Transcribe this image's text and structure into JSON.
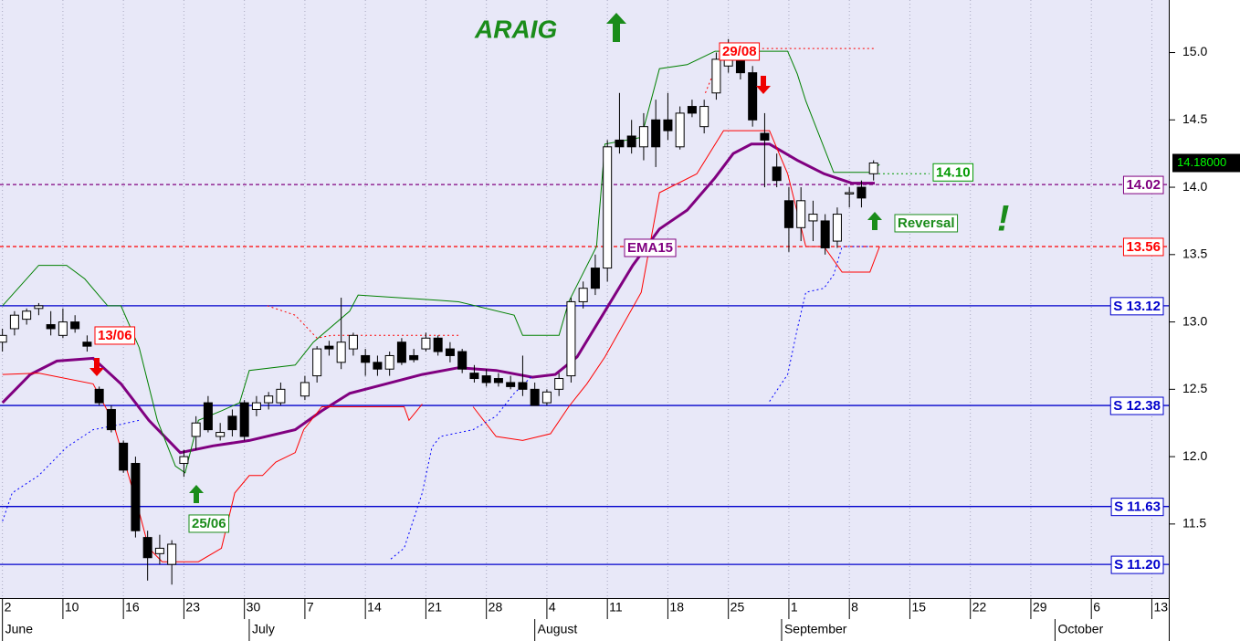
{
  "chart_data": {
    "type": "candlestick",
    "title": "ARAIG",
    "xlim": [
      -0.2,
      96.4
    ],
    "ylim": [
      10.95,
      15.39
    ],
    "xticks": [
      {
        "value": 0,
        "label": "2"
      },
      {
        "value": 5,
        "label": "10"
      },
      {
        "value": 10,
        "label": "16"
      },
      {
        "value": 15,
        "label": "23"
      },
      {
        "value": 20,
        "label": "30"
      },
      {
        "value": 25,
        "label": "7"
      },
      {
        "value": 30,
        "label": "14"
      },
      {
        "value": 35,
        "label": "21"
      },
      {
        "value": 40,
        "label": "28"
      },
      {
        "value": 45,
        "label": "4"
      },
      {
        "value": 50,
        "label": "11"
      },
      {
        "value": 55,
        "label": "18"
      },
      {
        "value": 60,
        "label": "25"
      },
      {
        "value": 65,
        "label": "1"
      },
      {
        "value": 70,
        "label": "8"
      },
      {
        "value": 75,
        "label": "15"
      },
      {
        "value": 80,
        "label": "22"
      },
      {
        "value": 85,
        "label": "29"
      },
      {
        "value": 90,
        "label": "6"
      },
      {
        "value": 95,
        "label": "13"
      }
    ],
    "month_ticks": [
      {
        "value": 0,
        "label": "June"
      },
      {
        "value": 20.4,
        "label": "July"
      },
      {
        "value": 44,
        "label": "August"
      },
      {
        "value": 64.4,
        "label": "September"
      },
      {
        "value": 87,
        "label": "October"
      }
    ],
    "yticks": [
      {
        "value": 15,
        "label": "15.0"
      },
      14.5,
      {
        "value": 14,
        "label": "14.0"
      },
      13.5,
      {
        "value": 13,
        "label": "13.0"
      },
      12.5,
      {
        "value": 12,
        "label": "12.0"
      },
      11.5
    ],
    "grid": true,
    "ohlc": {
      "x": [
        0,
        1,
        2,
        3,
        4,
        5,
        6,
        7,
        8,
        9,
        10,
        11,
        12,
        13,
        14,
        15,
        16,
        17,
        18,
        19,
        20,
        21,
        22,
        23,
        25,
        26,
        27,
        28,
        29,
        30,
        31,
        32,
        33,
        34,
        35,
        36,
        37,
        38,
        39,
        40,
        41,
        42,
        43,
        44,
        45,
        46,
        47,
        48,
        49,
        50,
        51,
        52,
        53,
        54,
        55,
        56,
        57,
        58,
        59,
        60,
        61,
        62,
        63,
        64,
        65,
        66,
        67,
        68,
        69,
        70,
        71,
        72
      ],
      "open": [
        12.85,
        12.95,
        13.02,
        13.1,
        12.98,
        12.9,
        13.0,
        12.85,
        12.5,
        12.35,
        12.1,
        11.95,
        11.4,
        11.28,
        11.2,
        11.95,
        12.15,
        12.4,
        12.15,
        12.3,
        12.4,
        12.35,
        12.4,
        12.4,
        12.45,
        12.6,
        12.82,
        12.7,
        12.8,
        12.75,
        12.7,
        12.65,
        12.85,
        12.75,
        12.8,
        12.88,
        12.8,
        12.78,
        12.62,
        12.6,
        12.58,
        12.55,
        12.55,
        12.5,
        12.4,
        12.5,
        12.6,
        13.15,
        13.4,
        13.4,
        14.35,
        14.38,
        14.3,
        14.5,
        14.5,
        14.3,
        14.6,
        14.45,
        14.7,
        14.9,
        14.95,
        14.85,
        14.4,
        14.15,
        13.9,
        13.7,
        13.75,
        13.75,
        13.6,
        13.95,
        14.0,
        14.1
      ],
      "high": [
        12.95,
        13.08,
        13.1,
        13.14,
        13.08,
        13.1,
        13.05,
        12.9,
        12.52,
        12.38,
        12.12,
        12.0,
        11.45,
        11.42,
        11.38,
        12.05,
        12.3,
        12.45,
        12.25,
        12.35,
        12.42,
        12.45,
        12.48,
        12.55,
        12.6,
        12.82,
        12.86,
        13.18,
        12.92,
        12.8,
        12.75,
        12.78,
        12.88,
        12.8,
        12.92,
        12.9,
        12.85,
        12.8,
        12.68,
        12.65,
        12.62,
        12.6,
        12.75,
        12.55,
        12.5,
        12.62,
        13.18,
        13.3,
        13.5,
        14.35,
        14.7,
        14.5,
        14.55,
        14.65,
        14.7,
        14.6,
        14.65,
        14.65,
        15.0,
        15.1,
        15.02,
        14.9,
        14.55,
        14.25,
        14.0,
        14.0,
        13.9,
        13.8,
        13.85,
        14.0,
        14.05,
        14.2
      ],
      "low": [
        12.78,
        12.9,
        12.98,
        13.05,
        12.9,
        12.88,
        12.92,
        12.78,
        12.38,
        12.18,
        11.88,
        11.4,
        11.08,
        11.2,
        11.05,
        11.85,
        12.05,
        12.18,
        12.12,
        12.15,
        12.12,
        12.3,
        12.35,
        12.38,
        12.42,
        12.55,
        12.75,
        12.65,
        12.75,
        12.6,
        12.6,
        12.6,
        12.68,
        12.7,
        12.78,
        12.75,
        12.7,
        12.62,
        12.55,
        12.52,
        12.52,
        12.5,
        12.45,
        12.38,
        12.38,
        12.45,
        12.55,
        13.1,
        13.2,
        13.3,
        14.25,
        14.25,
        14.2,
        14.15,
        14.35,
        14.28,
        14.52,
        14.4,
        14.65,
        14.85,
        14.8,
        14.45,
        14.0,
        14.0,
        13.52,
        13.6,
        13.6,
        13.5,
        13.55,
        13.85,
        13.85,
        14.05
      ],
      "close": [
        12.9,
        13.05,
        13.08,
        13.12,
        12.95,
        13.0,
        12.95,
        12.82,
        12.4,
        12.2,
        11.9,
        11.45,
        11.25,
        11.32,
        11.35,
        12.0,
        12.25,
        12.2,
        12.18,
        12.2,
        12.15,
        12.4,
        12.45,
        12.5,
        12.55,
        12.8,
        12.8,
        12.85,
        12.9,
        12.7,
        12.65,
        12.75,
        12.7,
        12.72,
        12.88,
        12.78,
        12.75,
        12.65,
        12.58,
        12.55,
        12.55,
        12.52,
        12.5,
        12.38,
        12.48,
        12.58,
        13.15,
        13.25,
        13.25,
        14.3,
        14.3,
        14.3,
        14.45,
        14.3,
        14.42,
        14.55,
        14.55,
        14.6,
        14.95,
        14.95,
        14.85,
        14.5,
        14.35,
        14.05,
        13.7,
        13.9,
        13.8,
        13.55,
        13.8,
        13.96,
        13.92,
        14.18
      ]
    },
    "lines": [
      {
        "color": "#800080",
        "width": 3,
        "style": "solid",
        "x": [
          0,
          2.3,
          4.5,
          7.5,
          9.8,
          12.1,
          14.7,
          17.4,
          20.4,
          24.2,
          26.4,
          28.7,
          31.7,
          34.7,
          37.7,
          40.8,
          43.8,
          45.7,
          47.5,
          49.8,
          52.1,
          54.3,
          56.6,
          58.9,
          60.4,
          61.9,
          63.4,
          65.7,
          67.9,
          70.2,
          72.1
        ],
        "values": [
          12.4,
          12.61,
          12.71,
          12.73,
          12.54,
          12.27,
          12.03,
          12.08,
          12.12,
          12.2,
          12.34,
          12.47,
          12.54,
          12.61,
          12.66,
          12.64,
          12.59,
          12.61,
          12.74,
          13.08,
          13.42,
          13.69,
          13.83,
          14.07,
          14.25,
          14.32,
          14.32,
          14.2,
          14.1,
          14.03,
          14.03
        ]
      },
      {
        "color": "#008000",
        "width": 1,
        "style": "solid",
        "x": [
          0,
          3.0,
          5.3,
          6.8,
          8.7,
          9.8,
          11.3,
          12.8,
          14.3,
          15.1,
          16.2,
          18.1,
          19.6,
          20.4,
          24.2,
          25.7,
          28.7,
          29.4,
          36.2,
          37.7,
          42.3,
          43.0,
          46.0,
          46.8,
          49.1,
          49.8,
          52.8,
          54.3,
          56.6,
          58.9,
          64.9,
          65.7,
          66.4,
          68.7,
          71.7,
          72.5
        ],
        "values": [
          13.12,
          13.42,
          13.42,
          13.32,
          13.12,
          13.12,
          12.81,
          12.27,
          11.93,
          11.88,
          12.27,
          12.34,
          12.4,
          12.64,
          12.68,
          12.85,
          13.08,
          13.2,
          13.16,
          13.15,
          13.05,
          12.9,
          12.9,
          13.15,
          13.56,
          14.32,
          14.37,
          14.88,
          14.91,
          15.01,
          15.01,
          14.84,
          14.64,
          14.11,
          14.11,
          14.17
        ]
      },
      {
        "color": "#ff0000",
        "width": 1,
        "style": "solid",
        "x": [
          0,
          3.0,
          7.5,
          9.1,
          11.3,
          12.1,
          13.2,
          16.2,
          18.1,
          19.2,
          20.4,
          21.5,
          22.6,
          24.2,
          24.9,
          26.4,
          29.4,
          33.2,
          33.6,
          34.7,
          36.0,
          38.9,
          40.8,
          43.0,
          45.3,
          46.8,
          48.3,
          49.8,
          52.8,
          54.3,
          57.4,
          59.6,
          63.4,
          64.9,
          66.4,
          67.9,
          69.4,
          71.7,
          72.5
        ],
        "values": [
          12.61,
          12.62,
          12.54,
          12.27,
          11.59,
          11.32,
          11.22,
          11.22,
          11.32,
          11.73,
          11.86,
          11.86,
          11.96,
          12.03,
          12.2,
          12.37,
          12.37,
          12.37,
          12.27,
          12.39,
          null,
          12.37,
          12.15,
          12.12,
          12.17,
          12.37,
          12.54,
          12.74,
          13.22,
          13.96,
          14.1,
          14.42,
          14.42,
          14.1,
          13.56,
          13.56,
          13.37,
          13.37,
          13.56
        ]
      },
      {
        "color": "#0000ff",
        "width": 1,
        "style": "dotted",
        "x": [
          0,
          0.8,
          3.0,
          5.3,
          7.5,
          9.8,
          11.3,
          20.0,
          32.1,
          33.2,
          34.7,
          35.5,
          36.2,
          38.9,
          40.8,
          42.3,
          43.8,
          50.0,
          63.4,
          64.9,
          65.7,
          66.4,
          67.9,
          68.7,
          69.4,
          71.7
        ],
        "values": [
          11.52,
          11.73,
          11.86,
          12.07,
          12.2,
          12.24,
          12.27,
          null,
          11.24,
          11.32,
          11.73,
          12.07,
          12.15,
          12.2,
          12.3,
          12.47,
          12.6,
          null,
          12.41,
          12.61,
          12.95,
          13.22,
          13.25,
          13.35,
          13.56,
          13.56
        ]
      },
      {
        "color": "#ff0000",
        "width": 1,
        "style": "dotted",
        "x": [
          21.9,
          24.2,
          26.0,
          27.2,
          37.7,
          50.0,
          58.1,
          59.6,
          72.1
        ],
        "values": [
          13.12,
          13.05,
          12.88,
          12.9,
          12.9,
          null,
          14.7,
          15.03,
          15.03
        ]
      }
    ],
    "levels": [
      {
        "value": 13.12,
        "label": "S 13.12",
        "color": "#0000cc",
        "style": "solid"
      },
      {
        "value": 12.38,
        "label": "S 12.38",
        "color": "#0000cc",
        "style": "solid"
      },
      {
        "value": 11.63,
        "label": "S 11.63",
        "color": "#0000cc",
        "style": "solid"
      },
      {
        "value": 11.2,
        "label": "S 11.20",
        "color": "#0000cc",
        "style": "solid"
      },
      {
        "value": 14.02,
        "color": "#800080",
        "style": "dashed"
      },
      {
        "value": 13.56,
        "color": "#ff0000",
        "style": "dashed"
      }
    ],
    "target": {
      "value": 14.1,
      "label": "14.10",
      "color": "#009900"
    },
    "last_price": {
      "value": 14.18,
      "label": "14.18000"
    },
    "annotations": [
      "13/06",
      "25/06",
      "29/08",
      "EMA15",
      "Reversal",
      "!"
    ]
  }
}
